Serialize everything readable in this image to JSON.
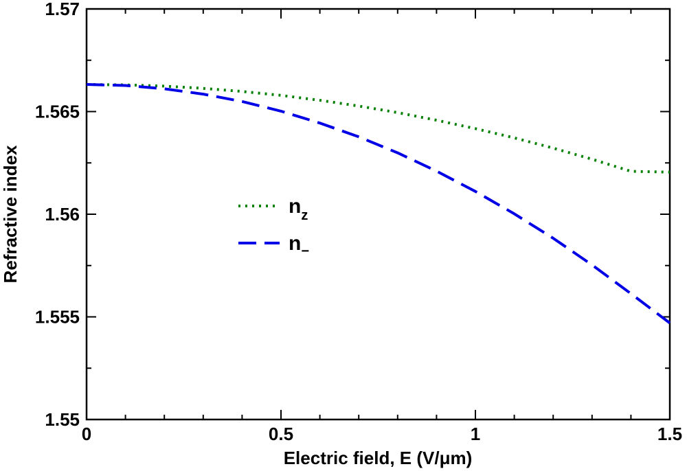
{
  "chart_data": {
    "type": "line",
    "xlabel": "Electric field, E (V/μm)",
    "ylabel": "Refractive index",
    "xlim": [
      0,
      1.5
    ],
    "ylim": [
      1.55,
      1.57
    ],
    "x_ticks": [
      0,
      0.5,
      1,
      1.5
    ],
    "x_tick_labels": [
      "0",
      "0.5",
      "1",
      "1.5"
    ],
    "y_ticks": [
      1.55,
      1.555,
      1.56,
      1.565,
      1.57
    ],
    "y_tick_labels": [
      "1.55",
      "1.555",
      "1.56",
      "1.565",
      "1.57"
    ],
    "grid": false,
    "legend_position": "center-left",
    "series": [
      {
        "name": "n_z",
        "legend_main": "n",
        "legend_sub": "z",
        "color": "#008000",
        "style": "dotted",
        "x": [
          0,
          0.1,
          0.2,
          0.3,
          0.4,
          0.5,
          0.6,
          0.7,
          0.8,
          0.9,
          1.0,
          1.1,
          1.2,
          1.3,
          1.4,
          1.5
        ],
        "y": [
          1.56632,
          1.5663,
          1.56624,
          1.56613,
          1.56598,
          1.56579,
          1.56555,
          1.56527,
          1.56495,
          1.56458,
          1.56417,
          1.56372,
          1.56322,
          1.56268,
          1.56209,
          1.56205
        ]
      },
      {
        "name": "n_−",
        "legend_main": "n",
        "legend_sub": "−",
        "color": "#0000e6",
        "style": "dashed",
        "x": [
          0,
          0.1,
          0.2,
          0.3,
          0.4,
          0.5,
          0.6,
          0.7,
          0.8,
          0.9,
          1.0,
          1.1,
          1.2,
          1.3,
          1.4,
          1.5
        ],
        "y": [
          1.56632,
          1.56627,
          1.56611,
          1.56585,
          1.56549,
          1.56502,
          1.56444,
          1.56377,
          1.56299,
          1.5621,
          1.56111,
          1.56002,
          1.55883,
          1.55753,
          1.55613,
          1.5547
        ]
      }
    ]
  }
}
